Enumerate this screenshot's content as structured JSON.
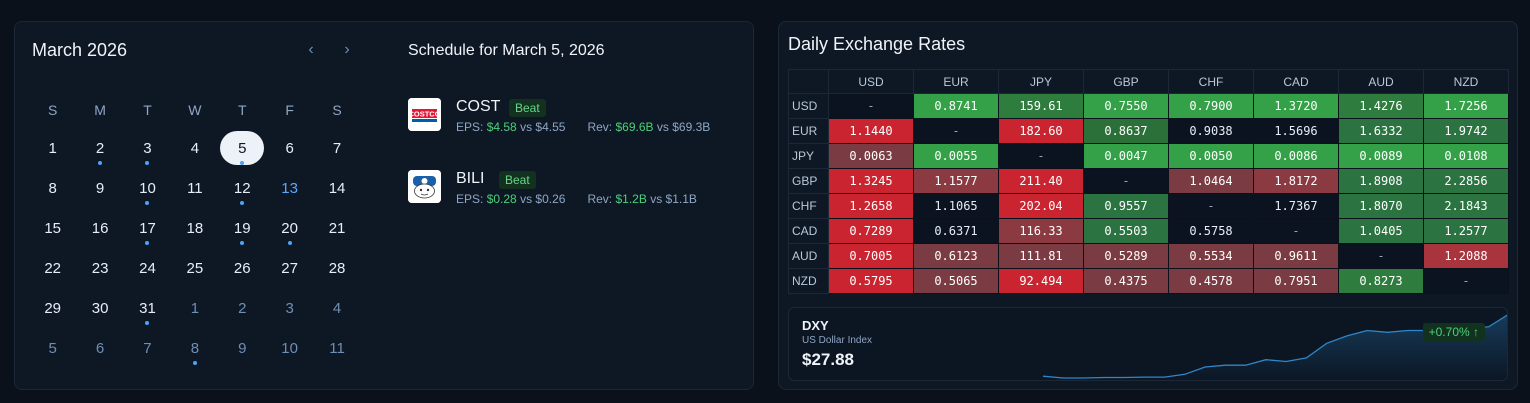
{
  "calendar": {
    "title": "March 2026",
    "prev_icon": "chevron-left-icon",
    "next_icon": "chevron-right-icon",
    "weekdays": [
      "S",
      "M",
      "T",
      "W",
      "T",
      "F",
      "S"
    ],
    "weeks": [
      [
        {
          "d": "1"
        },
        {
          "d": "2",
          "dot": true
        },
        {
          "d": "3",
          "dot": true
        },
        {
          "d": "4"
        },
        {
          "d": "5",
          "dot": true,
          "selected": true
        },
        {
          "d": "6"
        },
        {
          "d": "7"
        }
      ],
      [
        {
          "d": "8"
        },
        {
          "d": "9"
        },
        {
          "d": "10",
          "dot": true
        },
        {
          "d": "11"
        },
        {
          "d": "12",
          "dot": true
        },
        {
          "d": "13",
          "highlight": true
        },
        {
          "d": "14"
        }
      ],
      [
        {
          "d": "15"
        },
        {
          "d": "16"
        },
        {
          "d": "17",
          "dot": true
        },
        {
          "d": "18"
        },
        {
          "d": "19",
          "dot": true
        },
        {
          "d": "20",
          "dot": true
        },
        {
          "d": "21"
        }
      ],
      [
        {
          "d": "22"
        },
        {
          "d": "23"
        },
        {
          "d": "24"
        },
        {
          "d": "25"
        },
        {
          "d": "26"
        },
        {
          "d": "27"
        },
        {
          "d": "28"
        }
      ],
      [
        {
          "d": "29"
        },
        {
          "d": "30"
        },
        {
          "d": "31",
          "dot": true
        },
        {
          "d": "1",
          "other": true
        },
        {
          "d": "2",
          "other": true
        },
        {
          "d": "3",
          "other": true
        },
        {
          "d": "4",
          "other": true
        }
      ],
      [
        {
          "d": "5",
          "other": true
        },
        {
          "d": "6",
          "other": true
        },
        {
          "d": "7",
          "other": true
        },
        {
          "d": "8",
          "other": true,
          "dot": true
        },
        {
          "d": "9",
          "other": true
        },
        {
          "d": "10",
          "other": true
        },
        {
          "d": "11",
          "other": true
        }
      ]
    ]
  },
  "schedule": {
    "title": "Schedule for March 5, 2026",
    "items": [
      {
        "ticker": "COST",
        "badge": "Beat",
        "logo": "costco-logo",
        "eps_label": "EPS:",
        "eps_actual": "$4.58",
        "eps_vs": "vs",
        "eps_est": "$4.55",
        "rev_label": "Rev:",
        "rev_actual": "$69.6B",
        "rev_vs": "vs",
        "rev_est": "$69.3B"
      },
      {
        "ticker": "BILI",
        "badge": "Beat",
        "logo": "bilibili-logo",
        "eps_label": "EPS:",
        "eps_actual": "$0.28",
        "eps_vs": "vs",
        "eps_est": "$0.26",
        "rev_label": "Rev:",
        "rev_actual": "$1.2B",
        "rev_vs": "vs",
        "rev_est": "$1.1B"
      }
    ]
  },
  "fx": {
    "title": "Daily Exchange Rates",
    "currencies": [
      "USD",
      "EUR",
      "JPY",
      "GBP",
      "CHF",
      "CAD",
      "AUD",
      "NZD"
    ],
    "rows": [
      {
        "name": "USD",
        "cells": [
          [
            "-",
            "dash"
          ],
          [
            "0.8741",
            "#34a148"
          ],
          [
            "159.61",
            "#2e7d3e"
          ],
          [
            "0.7550",
            "#34a148"
          ],
          [
            "0.7900",
            "#34a148"
          ],
          [
            "1.3720",
            "#34a148"
          ],
          [
            "1.4276",
            "#2e7d3e"
          ],
          [
            "1.7256",
            "#34a148"
          ]
        ]
      },
      {
        "name": "EUR",
        "cells": [
          [
            "1.1440",
            "#c9242f"
          ],
          [
            "-",
            "dash"
          ],
          [
            "182.60",
            "#c9242f"
          ],
          [
            "0.8637",
            "#2a7038"
          ],
          [
            "0.9038",
            "neutral"
          ],
          [
            "1.5696",
            "neutral"
          ],
          [
            "1.6332",
            "#2b7340"
          ],
          [
            "1.9742",
            "#2b7340"
          ]
        ]
      },
      {
        "name": "JPY",
        "cells": [
          [
            "0.0063",
            "#7b3b42"
          ],
          [
            "0.0055",
            "#34a148"
          ],
          [
            "-",
            "dash"
          ],
          [
            "0.0047",
            "#34a148"
          ],
          [
            "0.0050",
            "#34a148"
          ],
          [
            "0.0086",
            "#34a148"
          ],
          [
            "0.0089",
            "#34a148"
          ],
          [
            "0.0108",
            "#34a148"
          ]
        ]
      },
      {
        "name": "GBP",
        "cells": [
          [
            "1.3245",
            "#c9242f"
          ],
          [
            "1.1577",
            "#8c3a42"
          ],
          [
            "211.40",
            "#c9242f"
          ],
          [
            "-",
            "dash"
          ],
          [
            "1.0464",
            "#7b3b42"
          ],
          [
            "1.8172",
            "#8c3a42"
          ],
          [
            "1.8908",
            "#2b7340"
          ],
          [
            "2.2856",
            "#2b7340"
          ]
        ]
      },
      {
        "name": "CHF",
        "cells": [
          [
            "1.2658",
            "#c9242f"
          ],
          [
            "1.1065",
            "neutral"
          ],
          [
            "202.04",
            "#c9242f"
          ],
          [
            "0.9557",
            "#2b7340"
          ],
          [
            "-",
            "dash"
          ],
          [
            "1.7367",
            "neutral"
          ],
          [
            "1.8070",
            "#2b7340"
          ],
          [
            "2.1843",
            "#2b7340"
          ]
        ]
      },
      {
        "name": "CAD",
        "cells": [
          [
            "0.7289",
            "#c9242f"
          ],
          [
            "0.6371",
            "neutral"
          ],
          [
            "116.33",
            "#8c3a42"
          ],
          [
            "0.5503",
            "#2b7340"
          ],
          [
            "0.5758",
            "neutral"
          ],
          [
            "-",
            "dash"
          ],
          [
            "1.0405",
            "#2b7340"
          ],
          [
            "1.2577",
            "#2b7340"
          ]
        ]
      },
      {
        "name": "AUD",
        "cells": [
          [
            "0.7005",
            "#c9242f"
          ],
          [
            "0.6123",
            "#7b3b42"
          ],
          [
            "111.81",
            "#7b3b42"
          ],
          [
            "0.5289",
            "#7b3b42"
          ],
          [
            "0.5534",
            "#7b3b42"
          ],
          [
            "0.9611",
            "#7b3b42"
          ],
          [
            "-",
            "dash"
          ],
          [
            "1.2088",
            "#a8343d"
          ]
        ]
      },
      {
        "name": "NZD",
        "cells": [
          [
            "0.5795",
            "#c9242f"
          ],
          [
            "0.5065",
            "#7b3b42"
          ],
          [
            "92.494",
            "#c9242f"
          ],
          [
            "0.4375",
            "#7b3b42"
          ],
          [
            "0.4578",
            "#7b3b42"
          ],
          [
            "0.7951",
            "#7b3b42"
          ],
          [
            "0.8273",
            "#2e7d3e"
          ],
          [
            "-",
            "dash"
          ]
        ]
      }
    ]
  },
  "dxy": {
    "symbol": "DXY",
    "name": "US Dollar Index",
    "price": "$27.88",
    "change": "+0.70% ↑",
    "spark": [
      2,
      1,
      1,
      1.3,
      1.3,
      1.5,
      1.5,
      3,
      7,
      8,
      8,
      11,
      10,
      12,
      20,
      24,
      27,
      26,
      27,
      27,
      28,
      28,
      29,
      36
    ]
  }
}
